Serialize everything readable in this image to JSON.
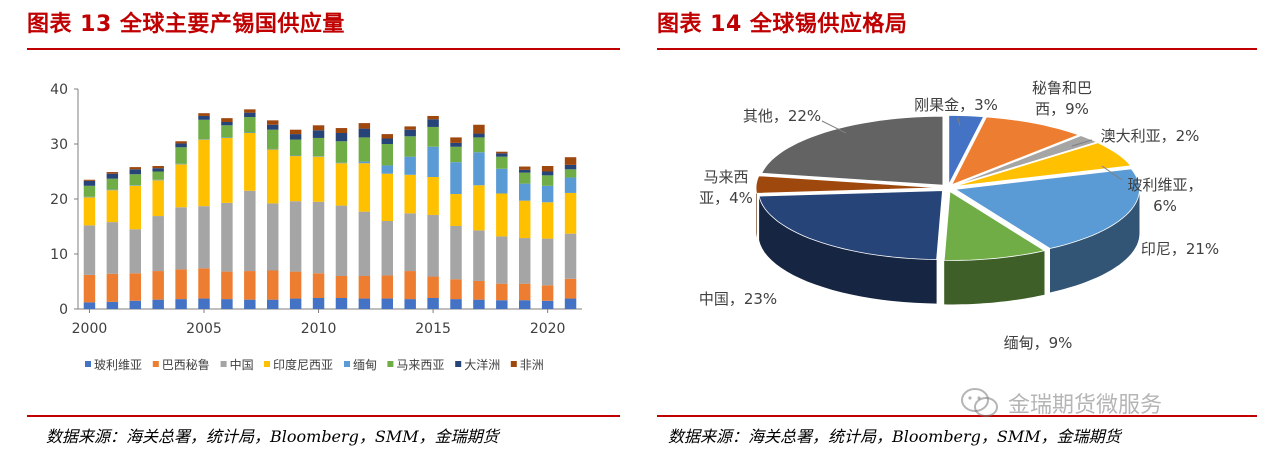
{
  "left": {
    "title": "图表 13 全球主要产锡国供应量",
    "source": "数据来源：海关总署，统计局，Bloomberg，SMM，金瑞期货"
  },
  "right": {
    "title": "图表 14 全球锡供应格局",
    "source": "数据来源：海关总署，统计局，Bloomberg，SMM，金瑞期货"
  },
  "watermark": {
    "text": "金瑞期货微服务",
    "icon": "wechat-icon"
  },
  "colors": {
    "accent": "#c00000"
  },
  "chart_data": [
    {
      "type": "bar",
      "stacked": true,
      "title": "",
      "xlabel": "",
      "ylabel": "",
      "ylim": [
        0,
        40
      ],
      "yticks": [
        0,
        10,
        20,
        30,
        40
      ],
      "xticks": [
        "2000",
        "2005",
        "2010",
        "2015",
        "2020"
      ],
      "grid": false,
      "legend_position": "bottom",
      "categories": [
        "2000",
        "2001",
        "2002",
        "2003",
        "2004",
        "2005",
        "2006",
        "2007",
        "2008",
        "2009",
        "2010",
        "2011",
        "2012",
        "2013",
        "2014",
        "2015",
        "2016",
        "2017",
        "2018",
        "2019",
        "2020",
        "2021"
      ],
      "series": [
        {
          "name": "玻利维亚",
          "color": "#4472c4",
          "values": [
            1.2,
            1.3,
            1.5,
            1.7,
            1.8,
            1.9,
            1.8,
            1.7,
            1.7,
            1.9,
            2.0,
            2.0,
            1.9,
            1.9,
            1.8,
            2.0,
            1.8,
            1.7,
            1.6,
            1.6,
            1.5,
            1.9
          ]
        },
        {
          "name": "巴西秘鲁",
          "color": "#ed7d31",
          "values": [
            5.0,
            5.1,
            5.0,
            5.2,
            5.4,
            5.5,
            5.0,
            5.2,
            5.3,
            4.9,
            4.5,
            4.0,
            4.1,
            4.2,
            5.1,
            3.9,
            3.6,
            3.4,
            3.0,
            3.0,
            2.8,
            3.6
          ]
        },
        {
          "name": "中国",
          "color": "#a5a5a5",
          "values": [
            9.0,
            9.4,
            8.0,
            10.0,
            11.3,
            11.3,
            12.5,
            14.6,
            12.2,
            12.8,
            13.0,
            12.8,
            11.7,
            9.9,
            10.5,
            11.2,
            9.7,
            9.2,
            8.6,
            8.3,
            8.5,
            8.2
          ]
        },
        {
          "name": "印度尼西亚",
          "color": "#ffc000",
          "values": [
            5.1,
            5.8,
            7.9,
            6.5,
            7.8,
            12.1,
            11.8,
            10.5,
            9.8,
            8.2,
            8.2,
            7.7,
            8.8,
            8.6,
            7.0,
            6.9,
            5.8,
            8.2,
            7.8,
            6.8,
            6.6,
            7.4
          ]
        },
        {
          "name": "缅甸",
          "color": "#5b9bd5",
          "values": [
            0.1,
            0.1,
            0.1,
            0.1,
            0.1,
            0.1,
            0.1,
            0.1,
            0.1,
            0.1,
            0.1,
            0.1,
            0.3,
            1.5,
            3.3,
            5.5,
            5.8,
            6.0,
            4.5,
            3.1,
            3.0,
            2.8
          ]
        },
        {
          "name": "马来西亚",
          "color": "#70ad47",
          "values": [
            2.0,
            2.0,
            2.0,
            1.5,
            3.0,
            3.5,
            2.2,
            2.8,
            3.5,
            2.9,
            3.3,
            3.9,
            4.4,
            3.9,
            3.7,
            3.6,
            2.8,
            2.7,
            2.2,
            2.0,
            1.9,
            1.5
          ]
        },
        {
          "name": "大洋洲",
          "color": "#264478",
          "values": [
            0.9,
            0.9,
            0.9,
            0.6,
            0.7,
            0.7,
            0.6,
            0.8,
            0.9,
            1.0,
            1.4,
            1.5,
            1.6,
            1.0,
            1.2,
            1.4,
            0.7,
            0.7,
            0.6,
            0.5,
            0.7,
            0.8
          ]
        },
        {
          "name": "非洲",
          "color": "#9e480e",
          "values": [
            0.2,
            0.3,
            0.4,
            0.4,
            0.4,
            0.5,
            0.7,
            0.6,
            0.8,
            0.8,
            0.9,
            0.9,
            1.0,
            0.8,
            0.6,
            0.6,
            1.0,
            1.6,
            0.3,
            0.6,
            1.0,
            1.4
          ]
        }
      ]
    },
    {
      "type": "pie",
      "title": "",
      "style": "3d-exploded",
      "slices": [
        {
          "name": "刚果金",
          "value": 3,
          "label": "刚果金，3%",
          "color": "#4472c4"
        },
        {
          "name": "秘鲁和巴西",
          "value": 9,
          "label": [
            "秘鲁和巴",
            "西，9%"
          ],
          "color": "#ed7d31"
        },
        {
          "name": "澳大利亚",
          "value": 2,
          "label": "澳大利亚，2%",
          "color": "#a5a5a5"
        },
        {
          "name": "玻利维亚",
          "value": 6,
          "label": [
            "玻利维亚，",
            "6%"
          ],
          "color": "#ffc000"
        },
        {
          "name": "印尼",
          "value": 21,
          "label": "印尼，21%",
          "color": "#5b9bd5"
        },
        {
          "name": "缅甸",
          "value": 9,
          "label": "缅甸，9%",
          "color": "#70ad47"
        },
        {
          "name": "中国",
          "value": 23,
          "label": "中国，23%",
          "color": "#264478"
        },
        {
          "name": "马来西亚",
          "value": 4,
          "label": [
            "马来西",
            "亚，4%"
          ],
          "color": "#9e480e"
        },
        {
          "name": "其他",
          "value": 22,
          "label": "其他，22%",
          "color": "#636363"
        }
      ]
    }
  ]
}
